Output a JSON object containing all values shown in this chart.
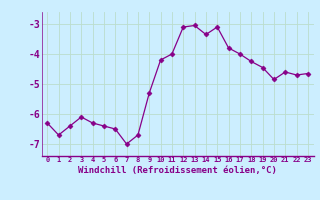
{
  "x": [
    0,
    1,
    2,
    3,
    4,
    5,
    6,
    7,
    8,
    9,
    10,
    11,
    12,
    13,
    14,
    15,
    16,
    17,
    18,
    19,
    20,
    21,
    22,
    23
  ],
  "y": [
    -6.3,
    -6.7,
    -6.4,
    -6.1,
    -6.3,
    -6.4,
    -6.5,
    -7.0,
    -6.7,
    -5.3,
    -4.2,
    -4.0,
    -3.1,
    -3.05,
    -3.35,
    -3.1,
    -3.8,
    -4.0,
    -4.25,
    -4.45,
    -4.85,
    -4.6,
    -4.7,
    -4.65
  ],
  "line_color": "#880088",
  "marker": "D",
  "marker_size": 2.5,
  "bg_color": "#cceeff",
  "grid_color": "#aaddcc",
  "xlabel": "Windchill (Refroidissement éolien,°C)",
  "ylim": [
    -7.4,
    -2.6
  ],
  "xlim": [
    -0.5,
    23.5
  ],
  "yticks": [
    -7,
    -6,
    -5,
    -4,
    -3
  ],
  "xticks": [
    0,
    1,
    2,
    3,
    4,
    5,
    6,
    7,
    8,
    9,
    10,
    11,
    12,
    13,
    14,
    15,
    16,
    17,
    18,
    19,
    20,
    21,
    22,
    23
  ]
}
